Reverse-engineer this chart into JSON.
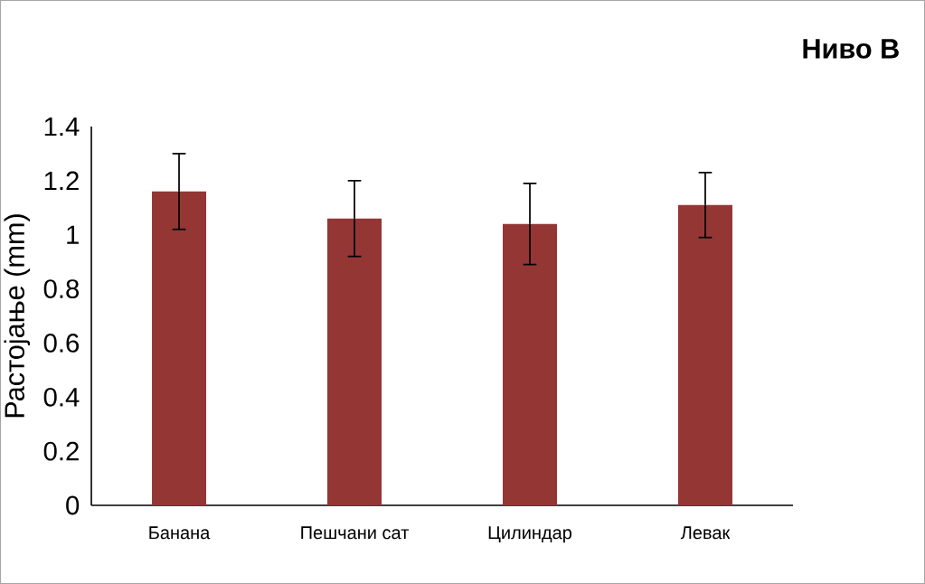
{
  "chart_data": {
    "type": "bar",
    "title": "Ниво В",
    "ylabel": "Растојање (mm)",
    "categories": [
      "Банана",
      "Пешчани сат",
      "Цилиндар",
      "Левак"
    ],
    "values": [
      1.16,
      1.06,
      1.04,
      1.11
    ],
    "errors": [
      0.14,
      0.14,
      0.15,
      0.12
    ],
    "color": "#943634",
    "ylim": [
      0,
      1.4
    ],
    "yticks": [
      0,
      0.2,
      0.4,
      0.6,
      0.8,
      1,
      1.2,
      1.4
    ],
    "grid": false
  }
}
